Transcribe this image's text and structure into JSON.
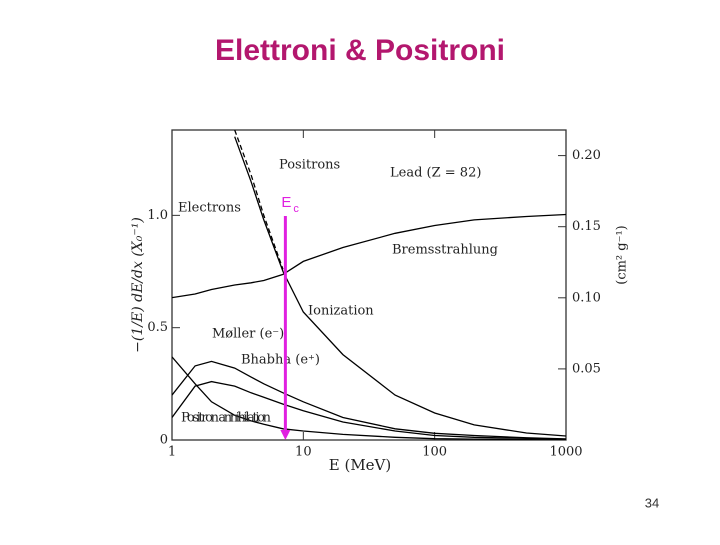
{
  "slide": {
    "title": "Elettroni & Positroni",
    "page_number": "34"
  },
  "chart_data": {
    "type": "line",
    "x_label": "E (MeV)",
    "y_label": "−(1/E) dE/dx (X₀⁻¹)",
    "y2_label": "(cm² g⁻¹)",
    "xscale": "log",
    "xlim": [
      1,
      1000
    ],
    "xticks": [
      1,
      10,
      100,
      1000
    ],
    "ylim": [
      0,
      1.38
    ],
    "yticks": [
      0,
      0.5,
      {
        "value": 1,
        "label": "1.0"
      }
    ],
    "y2lim": [
      0,
      0.218
    ],
    "y2ticks": [
      0.05,
      {
        "value": 0.1,
        "label": "0.10"
      },
      0.15,
      {
        "value": 0.2,
        "label": "0.20"
      }
    ],
    "x": [
      1,
      1.5,
      2,
      3,
      4,
      5,
      7,
      10,
      20,
      50,
      100,
      200,
      500,
      1000
    ],
    "series": [
      {
        "name": "Electrons",
        "color": "#000000",
        "style": "solid",
        "values": [
          null,
          null,
          null,
          1.35,
          1.15,
          0.98,
          0.75,
          0.57,
          0.38,
          0.2,
          0.12,
          0.067,
          0.031,
          0.018
        ]
      },
      {
        "name": "Positrons",
        "color": "#000000",
        "style": "dashed",
        "values": [
          null,
          null,
          null,
          1.38,
          1.18,
          1.0,
          0.76,
          null,
          null,
          null,
          null,
          null,
          null,
          null
        ]
      },
      {
        "name": "Bremsstrahlung",
        "color": "#000000",
        "style": "solid",
        "values": [
          0.634,
          0.65,
          0.67,
          0.69,
          0.7,
          0.71,
          0.737,
          0.795,
          0.857,
          0.92,
          0.955,
          0.98,
          0.995,
          1.004
        ]
      },
      {
        "name": "Møller (e⁻)",
        "color": "#000000",
        "style": "solid",
        "values": [
          0.2,
          0.33,
          0.35,
          0.32,
          0.28,
          0.25,
          0.21,
          0.17,
          0.1,
          0.05,
          0.03,
          0.02,
          0.01,
          0.005
        ]
      },
      {
        "name": "Bhabha (e⁺)",
        "color": "#000000",
        "style": "solid",
        "values": [
          0.1,
          0.24,
          0.26,
          0.24,
          0.21,
          0.19,
          0.16,
          0.13,
          0.08,
          0.04,
          0.02,
          0.012,
          0.007,
          0.004
        ]
      },
      {
        "name": "Positron annihilation",
        "color": "#000000",
        "style": "solid",
        "values": [
          0.37,
          0.25,
          0.17,
          0.11,
          0.085,
          0.07,
          0.05,
          0.04,
          0.025,
          0.012,
          0.006,
          0.004,
          0.002,
          0.001
        ]
      }
    ],
    "annotations": [
      "Lead (Z = 82)",
      "Ionization"
    ],
    "critical_energy": {
      "label": "E",
      "subscript": "c",
      "x": 7.3,
      "color": "#e020e0"
    }
  }
}
